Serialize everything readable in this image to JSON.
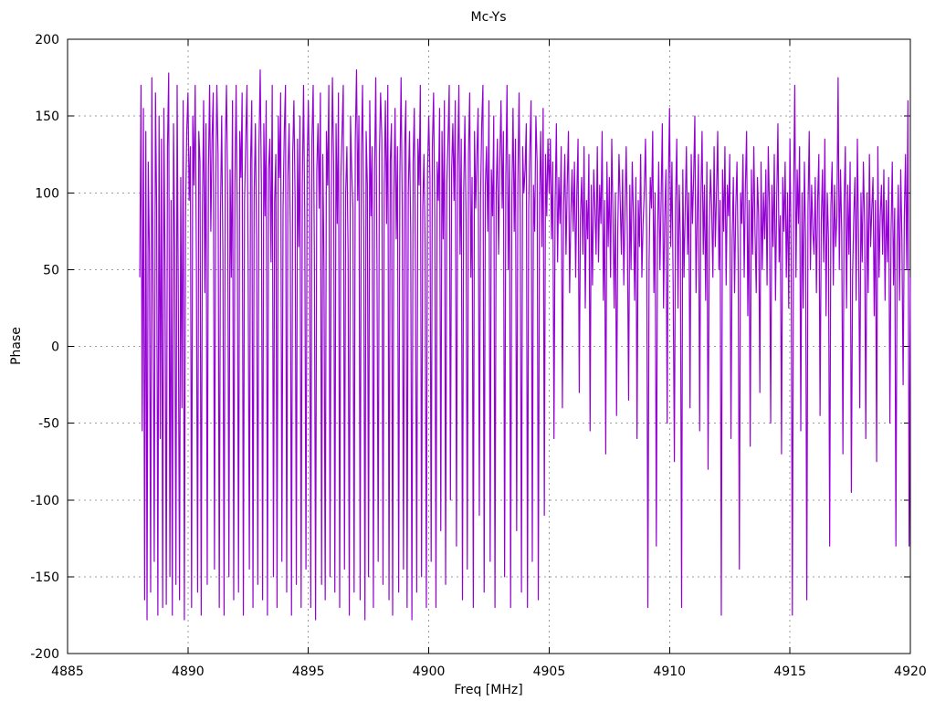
{
  "window": {
    "background": "#ffffff"
  },
  "chart_data": {
    "type": "line",
    "title": "Mc-Ys",
    "xlabel": "Freq [MHz]",
    "ylabel": "Phase",
    "xlim": [
      4885,
      4920
    ],
    "ylim": [
      -200,
      200
    ],
    "xticks": [
      4885,
      4890,
      4895,
      4900,
      4905,
      4910,
      4915,
      4920
    ],
    "yticks": [
      -200,
      -150,
      -100,
      -50,
      0,
      50,
      100,
      150,
      200
    ],
    "grid": true,
    "legend": "none",
    "line_color": "#9400d3",
    "grid_color": "#9c9c9c",
    "axis_color": "#000000",
    "series": [
      {
        "name": "Mc-Ys",
        "x_start": 4888.0,
        "x_step": 0.05,
        "phase_deg": [
          45,
          170,
          -55,
          155,
          -165,
          140,
          -178,
          120,
          60,
          -160,
          175,
          30,
          -140,
          165,
          90,
          -175,
          150,
          -60,
          135,
          -170,
          155,
          40,
          -168,
          130,
          178,
          -150,
          95,
          -175,
          145,
          65,
          -155,
          170,
          25,
          -165,
          110,
          -40,
          160,
          -178,
          85,
          140,
          165,
          95,
          130,
          -170,
          150,
          105,
          170,
          55,
          -160,
          140,
          120,
          -175,
          90,
          160,
          35,
          145,
          -155,
          115,
          170,
          75,
          135,
          165,
          -145,
          100,
          170,
          125,
          -170,
          85,
          150,
          60,
          -175,
          130,
          170,
          95,
          -150,
          115,
          45,
          160,
          -165,
          105,
          170,
          80,
          -160,
          140,
          110,
          165,
          -175,
          95,
          135,
          170,
          50,
          -145,
          120,
          160,
          -170,
          100,
          145,
          70,
          -155,
          130,
          180,
          105,
          -165,
          145,
          85,
          160,
          -175,
          115,
          135,
          55,
          170,
          -150,
          95,
          125,
          -170,
          150,
          110,
          165,
          -140,
          90,
          140,
          170,
          -160,
          110,
          145,
          75,
          -175,
          125,
          160,
          95,
          -155,
          135,
          65,
          150,
          -170,
          105,
          170,
          85,
          -145,
          120,
          160,
          100,
          -170,
          135,
          170,
          60,
          -178,
          115,
          145,
          90,
          165,
          -155,
          125,
          50,
          -165,
          140,
          105,
          170,
          -150,
          95,
          175,
          120,
          -160,
          145,
          80,
          165,
          -170,
          110,
          140,
          170,
          -145,
          100,
          130,
          60,
          -175,
          150,
          115,
          90,
          -160,
          135,
          180,
          95,
          150,
          -165,
          125,
          170,
          70,
          -178,
          140,
          105,
          -150,
          160,
          85,
          130,
          -170,
          115,
          175,
          55,
          -140,
          125,
          165,
          135,
          -155,
          105,
          160,
          80,
          170,
          -165,
          120,
          145,
          -175,
          95,
          155,
          70,
          130,
          -160,
          110,
          175,
          90,
          -145,
          130,
          160,
          -170,
          100,
          140,
          75,
          -178,
          120,
          155,
          45,
          -160,
          135,
          105,
          170,
          -150,
          90,
          125,
          65,
          -170,
          115,
          150,
          110,
          -140,
          130,
          165,
          85,
          -170,
          120,
          95,
          155,
          -120,
          140,
          70,
          160,
          -155,
          105,
          135,
          170,
          -100,
          115,
          145,
          95,
          160,
          -130,
          115,
          170,
          60,
          135,
          -165,
          100,
          150,
          80,
          -145,
          125,
          165,
          45,
          110,
          -170,
          140,
          90,
          125,
          155,
          -110,
          95,
          145,
          170,
          -160,
          105,
          130,
          75,
          160,
          -140,
          115,
          85,
          150,
          -170,
          100,
          135,
          60,
          120,
          160,
          90,
          140,
          -150,
          110,
          170,
          50,
          125,
          -170,
          95,
          155,
          75,
          135,
          -120,
          105,
          165,
          85,
          -160,
          130,
          100,
          115,
          145,
          -170,
          90,
          130,
          160,
          -140,
          105,
          75,
          150,
          120,
          -165,
          95,
          140,
          65,
          155,
          -110,
          125,
          85,
          135,
          100,
          135,
          70,
          120,
          -60,
          95,
          145,
          55,
          110,
          80,
          130,
          -40,
          90,
          125,
          60,
          105,
          140,
          35,
          85,
          115,
          75,
          120,
          45,
          100,
          135,
          -30,
          85,
          110,
          60,
          130,
          25,
          95,
          70,
          125,
          -55,
          105,
          40,
          115,
          90,
          60,
          130,
          55,
          105,
          80,
          140,
          30,
          95,
          -70,
          120,
          65,
          110,
          45,
          135,
          85,
          25,
          100,
          -45,
          75,
          125,
          95,
          60,
          115,
          40,
          90,
          130,
          70,
          -35,
          105,
          50,
          120,
          85,
          30,
          110,
          -60,
          95,
          65,
          125,
          45,
          80,
          100,
          135,
          75,
          -170,
          55,
          110,
          90,
          140,
          35,
          100,
          -130,
          70,
          120,
          50,
          95,
          145,
          25,
          85,
          115,
          -50,
          105,
          155,
          65,
          120,
          40,
          -75,
          95,
          135,
          25,
          105,
          70,
          -170,
          115,
          45,
          90,
          130,
          60,
          100,
          -40,
          125,
          80,
          110,
          150,
          35,
          85,
          125,
          -55,
          95,
          140,
          60,
          105,
          30,
          120,
          -80,
          75,
          115,
          90,
          45,
          130,
          65,
          100,
          140,
          50,
          95,
          -175,
          115,
          75,
          130,
          40,
          105,
          85,
          125,
          -60,
          70,
          110,
          35,
          90,
          120,
          55,
          -145,
          100,
          80,
          125,
          45,
          105,
          140,
          20,
          95,
          -65,
          115,
          60,
          130,
          75,
          35,
          110,
          85,
          -30,
          120,
          50,
          100,
          70,
          115,
          40,
          130,
          90,
          -50,
          105,
          65,
          125,
          30,
          95,
          145,
          55,
          85,
          -70,
          110,
          75,
          120,
          45,
          100,
          25,
          135,
          60,
          -175,
          95,
          170,
          45,
          115,
          80,
          130,
          -55,
          100,
          25,
          120,
          70,
          -165,
          90,
          140,
          50,
          105,
          75,
          60,
          110,
          35,
          95,
          125,
          -45,
          80,
          115,
          55,
          135,
          20,
          100,
          70,
          -130,
          90,
          120,
          40,
          105,
          65,
          85,
          175,
          50,
          115,
          75,
          -70,
          95,
          130,
          25,
          105,
          60,
          120,
          -95,
          45,
          85,
          110,
          30,
          135,
          70,
          -40,
          100,
          55,
          120,
          80,
          -60,
          100,
          35,
          125,
          65,
          90,
          110,
          20,
          95,
          -75,
          130,
          45,
          85,
          105,
          60,
          115,
          30,
          95,
          55,
          110,
          -50,
          75,
          120,
          40,
          90,
          -130,
          65,
          105,
          30,
          115,
          70,
          -25,
          85,
          125,
          50,
          160,
          -130,
          45
        ]
      }
    ]
  }
}
